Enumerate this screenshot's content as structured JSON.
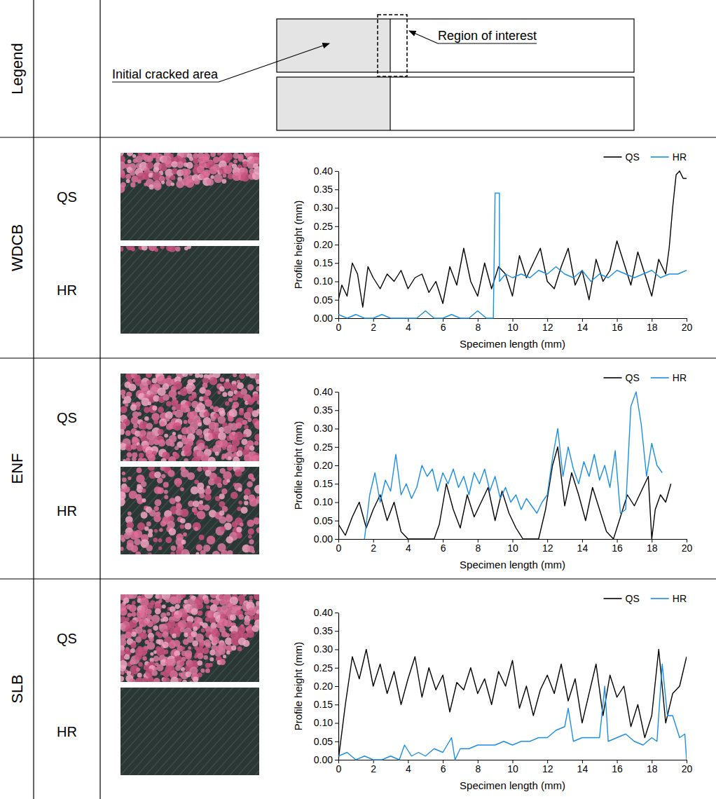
{
  "legend_panel": {
    "title": "Legend",
    "labels": [
      "Initial cracked area",
      "Region of interest"
    ]
  },
  "rows": [
    {
      "label": "WDCB",
      "conditions": [
        "QS",
        "HR"
      ]
    },
    {
      "label": "ENF",
      "conditions": [
        "QS",
        "HR"
      ]
    },
    {
      "label": "SLB",
      "conditions": [
        "QS",
        "HR"
      ]
    }
  ],
  "chart_data": [
    {
      "type": "line",
      "xlabel": "Specimen length (mm)",
      "ylabel": "Profile height (mm)",
      "xlim": [
        0,
        20
      ],
      "xticks": [
        0,
        2,
        4,
        6,
        8,
        10,
        12,
        14,
        16,
        18,
        20
      ],
      "ylim": [
        0,
        0.4
      ],
      "yticks": [
        {
          "value": 0,
          "label": "0.00"
        },
        {
          "value": 0.05,
          "label": "0.05"
        },
        {
          "value": 0.1,
          "label": "0.10"
        },
        {
          "value": 0.15,
          "label": "0.15"
        },
        {
          "value": 0.2,
          "label": "0.20"
        },
        {
          "value": 0.25,
          "label": "0.25"
        },
        {
          "value": 0.3,
          "label": "0.30"
        },
        {
          "value": 0.35,
          "label": "0.35"
        },
        {
          "value": 0.4,
          "label": "0.40"
        }
      ],
      "legend": "top-right",
      "series": [
        {
          "name": "QS",
          "color": "#000000",
          "x": [
            0,
            0.2,
            0.5,
            0.8,
            1.1,
            1.4,
            1.7,
            2.0,
            2.4,
            2.8,
            3.2,
            3.6,
            4.0,
            4.4,
            4.8,
            5.2,
            5.6,
            6.0,
            6.4,
            6.8,
            7.2,
            7.6,
            8.0,
            8.4,
            8.8,
            9.2,
            9.6,
            10.0,
            10.4,
            10.8,
            11.2,
            11.6,
            12.0,
            12.4,
            12.8,
            13.2,
            13.6,
            14.0,
            14.4,
            14.8,
            15.2,
            15.6,
            16.0,
            16.4,
            16.8,
            17.2,
            17.6,
            18.0,
            18.4,
            18.8,
            19.0,
            19.2,
            19.4,
            19.6,
            19.8,
            20.0
          ],
          "values": [
            0.05,
            0.09,
            0.06,
            0.15,
            0.12,
            0.03,
            0.14,
            0.11,
            0.08,
            0.12,
            0.1,
            0.13,
            0.08,
            0.11,
            0.12,
            0.07,
            0.1,
            0.04,
            0.14,
            0.09,
            0.19,
            0.1,
            0.06,
            0.15,
            0.08,
            0.14,
            0.12,
            0.06,
            0.17,
            0.11,
            0.15,
            0.19,
            0.1,
            0.08,
            0.14,
            0.19,
            0.09,
            0.13,
            0.05,
            0.16,
            0.1,
            0.13,
            0.21,
            0.15,
            0.09,
            0.18,
            0.12,
            0.06,
            0.16,
            0.12,
            0.19,
            0.3,
            0.39,
            0.4,
            0.38,
            0.38
          ]
        },
        {
          "name": "HR",
          "color": "#1a8fe3",
          "x": [
            0,
            0.5,
            1.0,
            1.5,
            2.0,
            2.5,
            3.0,
            3.5,
            4.0,
            4.5,
            5.0,
            5.5,
            6.0,
            6.5,
            7.0,
            7.5,
            8.0,
            8.5,
            8.9,
            9.0,
            9.25,
            9.25,
            9.6,
            10.0,
            10.5,
            11.0,
            11.5,
            12.0,
            12.5,
            13.0,
            13.5,
            14.0,
            14.5,
            15.0,
            15.5,
            16.0,
            16.5,
            17.0,
            17.5,
            18.0,
            18.5,
            19.0,
            19.5,
            20.0
          ],
          "values": [
            0.01,
            0,
            0.01,
            0,
            0,
            0.01,
            0,
            0,
            0,
            0,
            0.02,
            0,
            0,
            0.01,
            0,
            0,
            0.02,
            0,
            0,
            0.34,
            0.34,
            0.1,
            0.12,
            0.11,
            0.12,
            0.11,
            0.13,
            0.12,
            0.14,
            0.12,
            0.11,
            0.13,
            0.1,
            0.12,
            0.11,
            0.13,
            0.12,
            0.11,
            0.12,
            0.13,
            0.11,
            0.12,
            0.12,
            0.13
          ]
        }
      ]
    },
    {
      "type": "line",
      "xlabel": "Specimen length (mm)",
      "ylabel": "Profile height (mm)",
      "xlim": [
        0,
        20
      ],
      "xticks": [
        0,
        2,
        4,
        6,
        8,
        10,
        12,
        14,
        16,
        18,
        20
      ],
      "ylim": [
        0,
        0.4
      ],
      "yticks": [
        {
          "value": 0,
          "label": "0.00"
        },
        {
          "value": 0.05,
          "label": "0.05"
        },
        {
          "value": 0.1,
          "label": "0.10"
        },
        {
          "value": 0.15,
          "label": "0.15"
        },
        {
          "value": 0.2,
          "label": "0.20"
        },
        {
          "value": 0.25,
          "label": "0.25"
        },
        {
          "value": 0.3,
          "label": "0.30"
        },
        {
          "value": 0.35,
          "label": "0.35"
        },
        {
          "value": 0.4,
          "label": "0.40"
        }
      ],
      "legend": "top-right",
      "series": [
        {
          "name": "QS",
          "color": "#000000",
          "x": [
            0,
            0.4,
            0.8,
            1.2,
            1.6,
            2.0,
            2.4,
            2.8,
            3.2,
            3.6,
            4.0,
            4.5,
            5.0,
            5.5,
            5.8,
            6.2,
            6.6,
            7.0,
            7.4,
            7.8,
            8.2,
            8.6,
            9.0,
            9.4,
            9.8,
            10.2,
            10.6,
            11.0,
            11.5,
            11.9,
            12.3,
            12.6,
            13.0,
            13.4,
            13.8,
            14.2,
            14.6,
            15.0,
            15.4,
            15.8,
            16.2,
            16.6,
            17.0,
            17.4,
            17.8,
            18.0,
            18.2,
            18.5,
            18.8,
            19.1
          ],
          "values": [
            0.04,
            0.01,
            0.06,
            0.1,
            0.03,
            0.08,
            0.12,
            0.05,
            0.1,
            0.02,
            0,
            0,
            0,
            0,
            0.04,
            0.15,
            0.08,
            0.03,
            0.12,
            0.06,
            0.1,
            0.14,
            0.05,
            0.13,
            0.07,
            0.03,
            0,
            0,
            0,
            0.08,
            0.2,
            0.25,
            0.09,
            0.18,
            0.12,
            0.05,
            0.14,
            0.08,
            0.02,
            0,
            0.06,
            0.12,
            0.09,
            0.13,
            0.17,
            0,
            0.08,
            0.12,
            0.1,
            0.15
          ]
        },
        {
          "name": "HR",
          "color": "#1a8fe3",
          "x": [
            1.5,
            1.8,
            2.1,
            2.4,
            2.7,
            3.0,
            3.3,
            3.6,
            3.9,
            4.2,
            4.5,
            4.8,
            5.1,
            5.4,
            5.7,
            6.0,
            6.3,
            6.6,
            6.9,
            7.2,
            7.5,
            7.8,
            8.1,
            8.4,
            8.7,
            9.0,
            9.3,
            9.6,
            9.9,
            10.2,
            10.5,
            10.8,
            11.1,
            11.4,
            11.7,
            12.0,
            12.3,
            12.6,
            12.9,
            13.2,
            13.5,
            13.8,
            14.1,
            14.4,
            14.7,
            15.0,
            15.3,
            15.6,
            15.9,
            16.2,
            16.5,
            16.8,
            17.1,
            17.4,
            17.7,
            18.0,
            18.3,
            18.6
          ],
          "values": [
            0,
            0.12,
            0.18,
            0.1,
            0.16,
            0.13,
            0.23,
            0.12,
            0.15,
            0.11,
            0.14,
            0.2,
            0.17,
            0.19,
            0.13,
            0.18,
            0.15,
            0.19,
            0.14,
            0.17,
            0.12,
            0.18,
            0.15,
            0.19,
            0.13,
            0.17,
            0.11,
            0.14,
            0.1,
            0.12,
            0.08,
            0.11,
            0.09,
            0.07,
            0.1,
            0.12,
            0.22,
            0.3,
            0.17,
            0.25,
            0.19,
            0.15,
            0.21,
            0.17,
            0.23,
            0.16,
            0.2,
            0.14,
            0.24,
            0.07,
            0.08,
            0.36,
            0.4,
            0.31,
            0.17,
            0.26,
            0.2,
            0.18
          ]
        }
      ]
    },
    {
      "type": "line",
      "xlabel": "Specimen length (mm)",
      "ylabel": "Profile height (mm)",
      "xlim": [
        0,
        20
      ],
      "xticks": [
        0,
        2,
        4,
        6,
        8,
        10,
        12,
        14,
        16,
        18,
        20
      ],
      "ylim": [
        0,
        0.4
      ],
      "yticks": [
        {
          "value": 0,
          "label": "0.00"
        },
        {
          "value": 0.05,
          "label": "0.05"
        },
        {
          "value": 0.1,
          "label": "0.10"
        },
        {
          "value": 0.15,
          "label": "0.15"
        },
        {
          "value": 0.2,
          "label": "0.20"
        },
        {
          "value": 0.25,
          "label": "0.25"
        },
        {
          "value": 0.3,
          "label": "0.30"
        },
        {
          "value": 0.35,
          "label": "0.35"
        },
        {
          "value": 0.4,
          "label": "0.40"
        }
      ],
      "legend": "top-right",
      "series": [
        {
          "name": "QS",
          "color": "#000000",
          "x": [
            0,
            0.4,
            0.8,
            1.2,
            1.6,
            2,
            2.4,
            2.8,
            3.2,
            3.6,
            4,
            4.4,
            4.8,
            5.2,
            5.6,
            6,
            6.4,
            6.8,
            7.2,
            7.6,
            8,
            8.4,
            8.8,
            9.2,
            9.6,
            10,
            10.4,
            10.8,
            11.2,
            11.6,
            12,
            12.4,
            12.8,
            13.2,
            13.6,
            14,
            14.4,
            14.8,
            15.2,
            15.6,
            16,
            16.4,
            16.8,
            17.2,
            17.6,
            18,
            18.4,
            18.8,
            19.2,
            19.6,
            20
          ],
          "values": [
            0,
            0.15,
            0.28,
            0.22,
            0.3,
            0.2,
            0.26,
            0.18,
            0.24,
            0.15,
            0.22,
            0.28,
            0.17,
            0.25,
            0.19,
            0.23,
            0.13,
            0.21,
            0.19,
            0.25,
            0.18,
            0.22,
            0.15,
            0.24,
            0.2,
            0.27,
            0.14,
            0.2,
            0.12,
            0.19,
            0.23,
            0.18,
            0.26,
            0.16,
            0.22,
            0.1,
            0.18,
            0.26,
            0.12,
            0.23,
            0.17,
            0.2,
            0.09,
            0.15,
            0.06,
            0.12,
            0.3,
            0.1,
            0.18,
            0.2,
            0.28
          ]
        },
        {
          "name": "HR",
          "color": "#1a8fe3",
          "x": [
            0,
            0.5,
            1.0,
            1.5,
            2.0,
            2.5,
            3.0,
            3.5,
            3.8,
            4.2,
            4.6,
            5.0,
            5.5,
            6.0,
            6.5,
            6.7,
            7.0,
            7.5,
            8.0,
            8.5,
            9.0,
            9.5,
            10.0,
            10.5,
            11.0,
            11.5,
            12.0,
            12.5,
            13.0,
            13.2,
            13.5,
            14.0,
            14.5,
            15.0,
            15.3,
            15.5,
            16.0,
            16.5,
            17.0,
            17.5,
            18.0,
            18.3,
            18.6,
            18.9,
            19.2,
            19.6,
            19.9,
            20.0
          ],
          "values": [
            0.01,
            0.02,
            0,
            0.01,
            0,
            0,
            0.01,
            0,
            0.04,
            0.01,
            0.02,
            0.01,
            0.03,
            0.02,
            0.06,
            0,
            0.03,
            0.03,
            0.04,
            0.04,
            0.04,
            0.05,
            0.04,
            0.05,
            0.05,
            0.06,
            0.06,
            0.08,
            0.09,
            0.14,
            0.05,
            0.06,
            0.06,
            0.06,
            0.2,
            0.05,
            0.06,
            0.07,
            0.05,
            0.04,
            0.06,
            0.05,
            0.26,
            0.12,
            0.12,
            0.06,
            0.07,
            0
          ]
        }
      ]
    }
  ]
}
